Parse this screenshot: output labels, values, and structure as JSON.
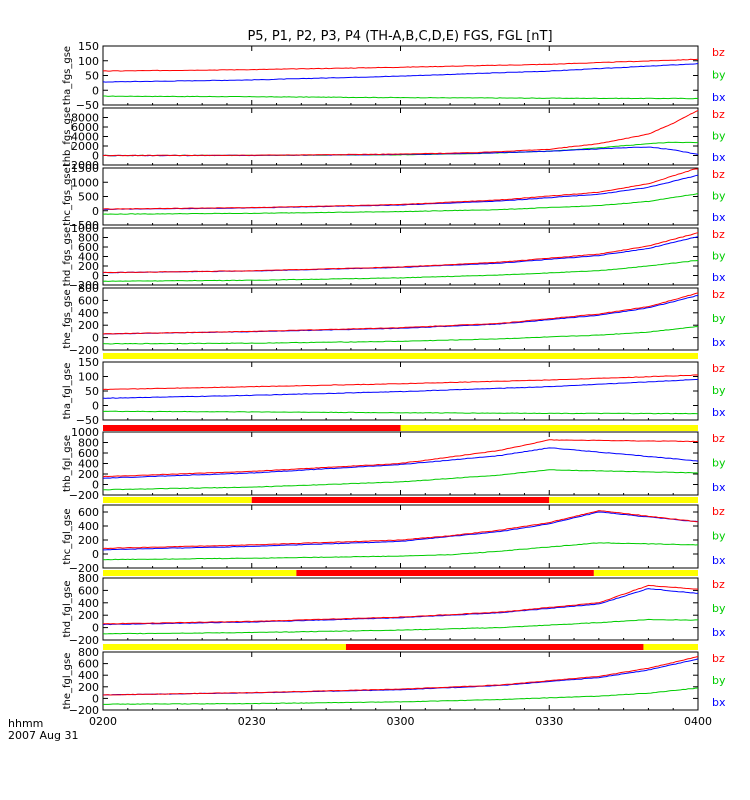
{
  "chart_data": {
    "type": "line",
    "title": "P5, P1, P2, P3, P4 (TH-A,B,C,D,E) FGS, FGL [nT]",
    "x_ticks": [
      "0200",
      "0230",
      "0300",
      "0330",
      "0400"
    ],
    "x_footer": [
      "hhmm",
      "2007 Aug 31"
    ],
    "series_colors": {
      "bz": "#ff0000",
      "by": "#00cc00",
      "bx": "#0000ff"
    },
    "bar_colors": {
      "yellow": "#ffff00",
      "red": "#ff0000"
    },
    "panels": [
      {
        "ylabel": "tha_fgs_gse",
        "ylim": [
          -50,
          150
        ],
        "yticks": [
          {
            "label": "150",
            "v": 150
          },
          {
            "label": "100",
            "v": 100
          },
          {
            "label": "50",
            "v": 50
          },
          {
            "label": "0",
            "v": 0
          },
          {
            "label": "−50",
            "v": -50
          }
        ],
        "x": [
          0,
          30,
          60,
          90,
          120
        ],
        "series": [
          {
            "name": "bz",
            "values": [
              65,
              70,
              78,
              88,
              105
            ]
          },
          {
            "name": "by",
            "values": [
              -20,
              -22,
              -25,
              -27,
              -28
            ]
          },
          {
            "name": "bx",
            "values": [
              28,
              35,
              48,
              65,
              90
            ]
          }
        ]
      },
      {
        "ylabel": "thb_fgs_gse",
        "ylim": [
          -2000,
          10000
        ],
        "yticks": [
          {
            "label": "8000",
            "v": 8000
          },
          {
            "label": "6000",
            "v": 6000
          },
          {
            "label": "4000",
            "v": 4000
          },
          {
            "label": "2000",
            "v": 2000
          },
          {
            "label": "0",
            "v": 0
          },
          {
            "label": "−2000",
            "v": -2000
          }
        ],
        "x": [
          0,
          30,
          60,
          75,
          90,
          100,
          110,
          115,
          120
        ],
        "series": [
          {
            "name": "bz",
            "values": [
              0,
              50,
              300,
              600,
              1300,
              2500,
              4500,
              6800,
              9500
            ]
          },
          {
            "name": "by",
            "values": [
              0,
              30,
              150,
              400,
              900,
              1600,
              2500,
              2800,
              2700
            ]
          },
          {
            "name": "bx",
            "values": [
              0,
              20,
              200,
              450,
              900,
              1400,
              1800,
              1200,
              200
            ]
          }
        ]
      },
      {
        "ylabel": "thc_fgs_gse",
        "ylim": [
          -500,
          1500
        ],
        "yticks": [
          {
            "label": "1500",
            "v": 1500
          },
          {
            "label": "1000",
            "v": 1000
          },
          {
            "label": "500",
            "v": 500
          },
          {
            "label": "0",
            "v": 0
          },
          {
            "label": "−500",
            "v": -500
          }
        ],
        "x": [
          0,
          30,
          60,
          80,
          100,
          110,
          120
        ],
        "series": [
          {
            "name": "bz",
            "values": [
              60,
              110,
              220,
              380,
              650,
              950,
              1500
            ]
          },
          {
            "name": "by",
            "values": [
              -120,
              -90,
              -30,
              40,
              180,
              330,
              600
            ]
          },
          {
            "name": "bx",
            "values": [
              50,
              100,
              200,
              340,
              580,
              820,
              1250
            ]
          }
        ]
      },
      {
        "ylabel": "thd_fgs_gse",
        "ylim": [
          -200,
          1000
        ],
        "yticks": [
          {
            "label": "1000",
            "v": 1000
          },
          {
            "label": "800",
            "v": 800
          },
          {
            "label": "600",
            "v": 600
          },
          {
            "label": "400",
            "v": 400
          },
          {
            "label": "200",
            "v": 200
          },
          {
            "label": "0",
            "v": 0
          },
          {
            "label": "−200",
            "v": -200
          }
        ],
        "x": [
          0,
          30,
          60,
          80,
          100,
          110,
          120
        ],
        "series": [
          {
            "name": "bz",
            "values": [
              60,
              100,
              180,
              280,
              450,
              620,
              900
            ]
          },
          {
            "name": "by",
            "values": [
              -120,
              -100,
              -50,
              10,
              100,
              200,
              320
            ]
          },
          {
            "name": "bx",
            "values": [
              60,
              95,
              170,
              260,
              420,
              570,
              820
            ]
          }
        ]
      },
      {
        "ylabel": "the_fgs_gse",
        "ylim": [
          -200,
          800
        ],
        "yticks": [
          {
            "label": "800",
            "v": 800
          },
          {
            "label": "600",
            "v": 600
          },
          {
            "label": "400",
            "v": 400
          },
          {
            "label": "200",
            "v": 200
          },
          {
            "label": "0",
            "v": 0
          },
          {
            "label": "−200",
            "v": -200
          }
        ],
        "x": [
          0,
          30,
          60,
          80,
          100,
          110,
          120
        ],
        "series": [
          {
            "name": "bz",
            "values": [
              60,
              100,
              160,
              230,
              380,
              500,
              720
            ]
          },
          {
            "name": "by",
            "values": [
              -100,
              -90,
              -60,
              -20,
              40,
              90,
              180
            ]
          },
          {
            "name": "bx",
            "values": [
              60,
              95,
              150,
              220,
              360,
              480,
              680
            ]
          }
        ]
      },
      {
        "ylabel": "tha_fgl_gse",
        "ylim": [
          -50,
          150
        ],
        "yticks": [
          {
            "label": "150",
            "v": 150
          },
          {
            "label": "100",
            "v": 100
          },
          {
            "label": "50",
            "v": 50
          },
          {
            "label": "0",
            "v": 0
          },
          {
            "label": "−50",
            "v": -50
          }
        ],
        "x": [
          0,
          30,
          60,
          90,
          120
        ],
        "series": [
          {
            "name": "bz",
            "values": [
              55,
              65,
              75,
              88,
              105
            ]
          },
          {
            "name": "by",
            "values": [
              -20,
              -22,
              -25,
              -27,
              -28
            ]
          },
          {
            "name": "bx",
            "values": [
              25,
              35,
              48,
              65,
              90
            ]
          }
        ]
      },
      {
        "ylabel": "thb_fgl_gse",
        "ylim": [
          -200,
          1000
        ],
        "yticks": [
          {
            "label": "1000",
            "v": 1000
          },
          {
            "label": "800",
            "v": 800
          },
          {
            "label": "600",
            "v": 600
          },
          {
            "label": "400",
            "v": 400
          },
          {
            "label": "200",
            "v": 200
          },
          {
            "label": "0",
            "v": 0
          },
          {
            "label": "−200",
            "v": -200
          }
        ],
        "x": [
          0,
          30,
          60,
          80,
          90,
          120
        ],
        "series": [
          {
            "name": "bz",
            "values": [
              150,
              250,
              400,
              650,
              850,
              820
            ]
          },
          {
            "name": "by",
            "values": [
              -100,
              -50,
              50,
              180,
              280,
              220
            ]
          },
          {
            "name": "bx",
            "values": [
              120,
              220,
              380,
              550,
              700,
              450
            ]
          }
        ],
        "status_bar": [
          {
            "from": 0,
            "to": 60,
            "color": "red"
          },
          {
            "from": 60,
            "to": 120,
            "color": "yellow"
          }
        ]
      },
      {
        "ylabel": "thc_fgl_gse",
        "ylim": [
          -200,
          700
        ],
        "yticks": [
          {
            "label": "600",
            "v": 600
          },
          {
            "label": "400",
            "v": 400
          },
          {
            "label": "200",
            "v": 200
          },
          {
            "label": "0",
            "v": 0
          },
          {
            "label": "−200",
            "v": -200
          }
        ],
        "x": [
          0,
          30,
          60,
          70,
          80,
          90,
          100,
          120
        ],
        "series": [
          {
            "name": "bz",
            "values": [
              80,
              130,
              200,
              260,
              340,
              450,
              620,
              460
            ]
          },
          {
            "name": "by",
            "values": [
              -80,
              -60,
              -30,
              -10,
              40,
              100,
              160,
              130
            ]
          },
          {
            "name": "bx",
            "values": [
              60,
              110,
              180,
              250,
              320,
              430,
              600,
              460
            ]
          }
        ],
        "status_bar": [
          {
            "from": 0,
            "to": 30,
            "color": "yellow"
          },
          {
            "from": 30,
            "to": 90,
            "color": "red"
          },
          {
            "from": 90,
            "to": 120,
            "color": "yellow"
          }
        ]
      },
      {
        "ylabel": "thd_fgl_gse",
        "ylim": [
          -200,
          800
        ],
        "yticks": [
          {
            "label": "800",
            "v": 800
          },
          {
            "label": "600",
            "v": 600
          },
          {
            "label": "400",
            "v": 400
          },
          {
            "label": "200",
            "v": 200
          },
          {
            "label": "0",
            "v": 0
          },
          {
            "label": "−200",
            "v": -200
          }
        ],
        "x": [
          0,
          30,
          60,
          80,
          100,
          110,
          120
        ],
        "series": [
          {
            "name": "bz",
            "values": [
              60,
              100,
              170,
              250,
              400,
              680,
              620
            ]
          },
          {
            "name": "by",
            "values": [
              -100,
              -80,
              -40,
              0,
              80,
              130,
              120
            ]
          },
          {
            "name": "bx",
            "values": [
              50,
              90,
              160,
              240,
              380,
              630,
              550
            ]
          }
        ],
        "status_bar": [
          {
            "from": 0,
            "to": 39,
            "color": "yellow"
          },
          {
            "from": 39,
            "to": 99,
            "color": "red"
          },
          {
            "from": 99,
            "to": 120,
            "color": "yellow"
          }
        ]
      },
      {
        "ylabel": "the_fgl_gse",
        "ylim": [
          -200,
          800
        ],
        "yticks": [
          {
            "label": "800",
            "v": 800
          },
          {
            "label": "600",
            "v": 600
          },
          {
            "label": "400",
            "v": 400
          },
          {
            "label": "200",
            "v": 200
          },
          {
            "label": "0",
            "v": 0
          },
          {
            "label": "−200",
            "v": -200
          }
        ],
        "x": [
          0,
          30,
          60,
          80,
          100,
          110,
          120
        ],
        "series": [
          {
            "name": "bz",
            "values": [
              60,
              100,
              160,
              230,
              380,
              520,
              720
            ]
          },
          {
            "name": "by",
            "values": [
              -100,
              -90,
              -60,
              -20,
              40,
              90,
              180
            ]
          },
          {
            "name": "bx",
            "values": [
              60,
              95,
              150,
              220,
              360,
              490,
              680
            ]
          }
        ],
        "status_bar": [
          {
            "from": 0,
            "to": 49,
            "color": "yellow"
          },
          {
            "from": 49,
            "to": 109,
            "color": "red"
          },
          {
            "from": 109,
            "to": 120,
            "color": "yellow"
          }
        ]
      }
    ],
    "top_status_bar": [
      {
        "from": 0,
        "to": 120,
        "color": "yellow"
      }
    ]
  }
}
